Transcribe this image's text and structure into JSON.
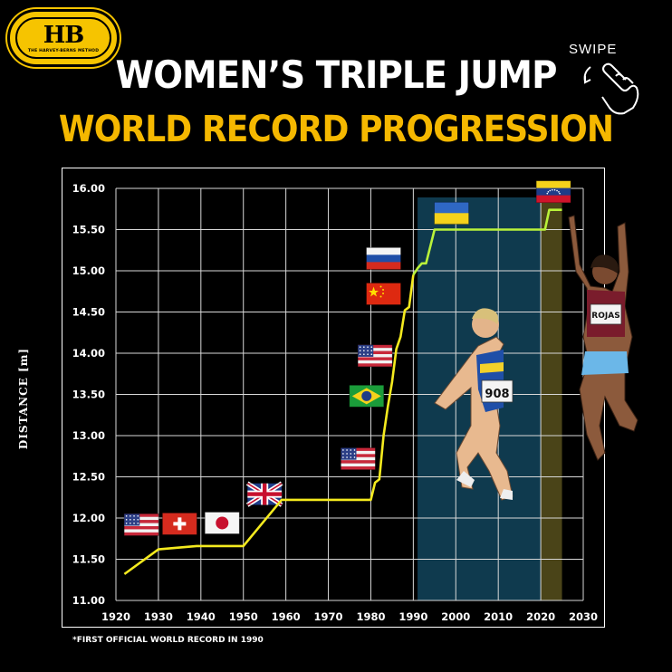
{
  "logo": {
    "mark": "HB",
    "tagline": "THE HARVEY-BERNS METHOD"
  },
  "header": {
    "title": "WOMEN’S TRIPLE JUMP",
    "subtitle": "WORLD RECORD PROGRESSION",
    "swipe_label": "SWIPE"
  },
  "footnote": "*FIRST OFFICIAL WORLD RECORD IN 1990",
  "athlete_label": "ROJAS",
  "bib_label": "908",
  "colors": {
    "line": "#f4ea1e",
    "line_recent": "#b9f23a",
    "highlight_blue": "#0f3a4e",
    "highlight_gold": "#4a4418",
    "title_accent": "#f5b800"
  },
  "chart_data": {
    "type": "line",
    "title": "WOMEN’S TRIPLE JUMP",
    "subtitle": "WORLD RECORD PROGRESSION",
    "xlabel": "",
    "ylabel": "DISTANCE [m]",
    "xlim": [
      1920,
      2030
    ],
    "ylim": [
      11.0,
      16.0
    ],
    "x_ticks": [
      "1920",
      "1930",
      "1940",
      "1950",
      "1960",
      "1970",
      "1980",
      "1990",
      "2000",
      "2010",
      "2020",
      "2030"
    ],
    "y_ticks": [
      "11.00",
      "11.50",
      "12.00",
      "12.50",
      "13.00",
      "13.50",
      "14.00",
      "14.50",
      "15.00",
      "15.50",
      "16.00"
    ],
    "grid": true,
    "series": [
      {
        "x": [
          1922,
          1930,
          1939,
          1950,
          1959,
          1980,
          1981,
          1982,
          1983,
          1984,
          1985,
          1986,
          1987,
          1988,
          1989,
          1990,
          1991,
          1992,
          1993,
          1995,
          2021,
          2022,
          2025
        ],
        "y": [
          11.32,
          11.62,
          11.66,
          11.66,
          12.22,
          12.22,
          12.43,
          12.47,
          13.0,
          13.35,
          13.65,
          14.05,
          14.2,
          14.52,
          14.56,
          14.95,
          15.03,
          15.09,
          15.09,
          15.5,
          15.5,
          15.74,
          15.74
        ]
      }
    ],
    "highlights": [
      {
        "label": "blue",
        "x_start": 1991,
        "x_end": 2020
      },
      {
        "label": "gold",
        "x_start": 2020,
        "x_end": 2025
      }
    ],
    "flags": [
      {
        "country": "USA",
        "x": 1926,
        "y": 11.92
      },
      {
        "country": "Switzerland",
        "x": 1935,
        "y": 11.93
      },
      {
        "country": "Japan",
        "x": 1945,
        "y": 11.94
      },
      {
        "country": "United Kingdom",
        "x": 1955,
        "y": 12.29
      },
      {
        "country": "USA",
        "x": 1977,
        "y": 12.72
      },
      {
        "country": "Brazil",
        "x": 1979,
        "y": 13.48
      },
      {
        "country": "USA",
        "x": 1981,
        "y": 13.97
      },
      {
        "country": "China",
        "x": 1983,
        "y": 14.72
      },
      {
        "country": "Russia",
        "x": 1983,
        "y": 15.15
      },
      {
        "country": "Ukraine",
        "x": 1999,
        "y": 15.7
      },
      {
        "country": "Venezuela",
        "x": 2023,
        "y": 15.96
      }
    ]
  }
}
